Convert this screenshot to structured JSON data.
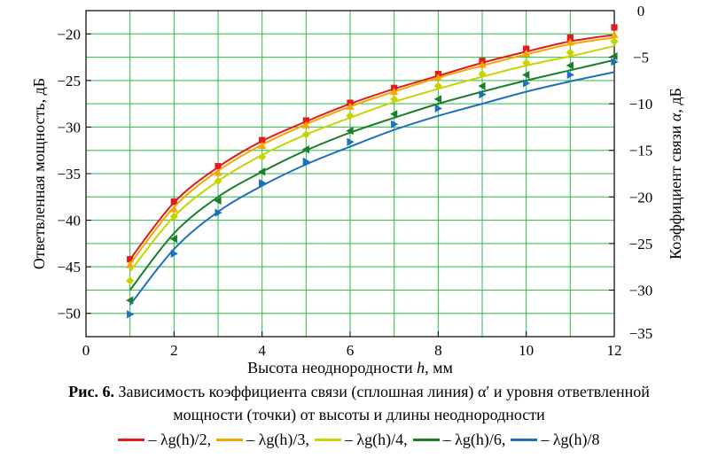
{
  "chart_data": {
    "type": "line",
    "xlabel_main": "Высота неоднородности ",
    "xlabel_var": "h",
    "xlabel_unit": ", мм",
    "ylabel_left": "Ответвленная мощность, дБ",
    "ylabel_right_main": "Коэффициент связи ",
    "ylabel_right_var": "α",
    "ylabel_right_unit": ", дБ",
    "xlim": [
      0,
      12
    ],
    "ylim_left": [
      -52.5,
      -17.5
    ],
    "ylim_right": [
      -35,
      0
    ],
    "x_ticks": [
      "0",
      "2",
      "4",
      "6",
      "8",
      "10",
      "12"
    ],
    "y_left_ticks": [
      "-20",
      "-25",
      "-30",
      "-35",
      "-40",
      "-45",
      "-50"
    ],
    "y_right_ticks": [
      "0",
      "-5",
      "-10",
      "-15",
      "-20",
      "-25",
      "-30",
      "-35"
    ],
    "grid": true,
    "x": [
      1,
      2,
      3,
      4,
      5,
      6,
      7,
      8,
      9,
      10,
      11,
      12
    ],
    "series": [
      {
        "name": "λg(h)/2",
        "color": "#e41a1c",
        "marker": "square",
        "line_values": [
          -26.7,
          -20.6,
          -16.8,
          -14.0,
          -11.9,
          -10.0,
          -8.4,
          -7.0,
          -5.6,
          -4.4,
          -3.3,
          -2.6
        ],
        "point_values": [
          -44.2,
          -38.0,
          -34.2,
          -31.4,
          -29.3,
          -27.4,
          -25.8,
          -24.3,
          -22.9,
          -21.6,
          -20.4,
          -19.3
        ]
      },
      {
        "name": "λg(h)/3",
        "color": "#f5a800",
        "marker": "triangle-up",
        "line_values": [
          -27.2,
          -21.1,
          -17.2,
          -14.4,
          -12.2,
          -10.3,
          -8.7,
          -7.2,
          -5.9,
          -4.7,
          -3.6,
          -2.9
        ],
        "point_values": [
          -44.8,
          -38.8,
          -34.9,
          -32.0,
          -29.8,
          -27.8,
          -26.2,
          -24.7,
          -23.3,
          -22.1,
          -20.9,
          -20.1
        ]
      },
      {
        "name": "λg(h)/4",
        "color": "#c8d400",
        "marker": "diamond",
        "line_values": [
          -28.0,
          -22.1,
          -18.3,
          -15.5,
          -13.3,
          -11.5,
          -9.8,
          -8.4,
          -7.1,
          -5.9,
          -4.9,
          -3.8
        ],
        "point_values": [
          -46.5,
          -39.6,
          -35.8,
          -33.2,
          -30.8,
          -28.8,
          -27.0,
          -25.6,
          -24.3,
          -23.1,
          -22.0,
          -20.8
        ]
      },
      {
        "name": "λg(h)/6",
        "color": "#1b7f2a",
        "marker": "triangle-left",
        "line_values": [
          -30.0,
          -23.9,
          -20.0,
          -17.3,
          -15.0,
          -13.1,
          -11.5,
          -10.0,
          -8.7,
          -7.5,
          -6.4,
          -5.3
        ],
        "point_values": [
          -48.6,
          -42.0,
          -37.9,
          -34.8,
          -32.4,
          -30.4,
          -28.6,
          -27.0,
          -25.6,
          -24.4,
          -23.4,
          -22.4
        ]
      },
      {
        "name": "λg(h)/8",
        "color": "#1f6fbf",
        "marker": "triangle-right",
        "line_values": [
          -31.6,
          -25.6,
          -21.6,
          -18.8,
          -16.5,
          -14.6,
          -12.8,
          -11.3,
          -10.0,
          -8.7,
          -7.6,
          -6.6
        ],
        "point_values": [
          -50.1,
          -43.6,
          -39.2,
          -36.0,
          -33.7,
          -31.6,
          -29.7,
          -28.0,
          -26.5,
          -25.3,
          -24.4,
          -23.0
        ]
      }
    ]
  },
  "caption": {
    "fig_label": "Рис. 6.",
    "text_before": " Зависимость коэффициента связи (сплошная линия) ",
    "symbol": "α′",
    "text_after": " и уровня ответвленной",
    "line2": "мощности (точки) от высоты и длины неоднородности"
  },
  "legend": [
    {
      "label": "– λg(h)/2,",
      "color": "#e41a1c"
    },
    {
      "label": "– λg(h)/3,",
      "color": "#f5a800"
    },
    {
      "label": "– λg(h)/4,",
      "color": "#c8d400"
    },
    {
      "label": "– λg(h)/6,",
      "color": "#1b7f2a"
    },
    {
      "label": "– λg(h)/8",
      "color": "#1f6fbf"
    }
  ]
}
